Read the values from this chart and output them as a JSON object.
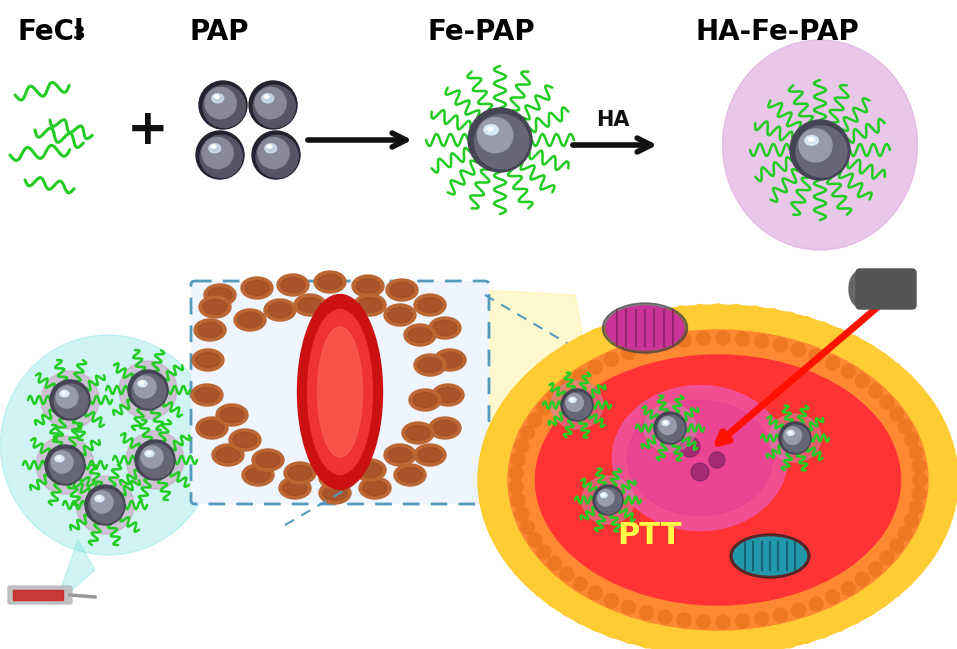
{
  "figsize": [
    9.57,
    6.49
  ],
  "dpi": 100,
  "labels": {
    "fecl3": "FeCl",
    "fecl3_sub": "3",
    "pap": "PAP",
    "fe_pap": "Fe-PAP",
    "ha_fe_pap": "HA-Fe-PAP",
    "ha": "HA",
    "ptt": "PTT"
  },
  "colors": {
    "bg": "#ffffff",
    "green": "#22cc22",
    "sphere_dark": "#333344",
    "sphere_mid": "#666677",
    "sphere_light": "#aaaacc",
    "sphere_highlight": "#eeeeff",
    "pap_sphere": "#888898",
    "pap_mid": "#aaaaaa",
    "ha_bubble": "#ddaadd",
    "ha_bubble2": "#cc99cc",
    "arrow": "#111111",
    "teal_bubble": "#88dddd",
    "nano_bg_pink": "#cc99bb",
    "outer_cell": "#ffcc33",
    "mid_cell": "#ff8833",
    "inner_cell": "#ff3333",
    "nucleus": "#ee55aa",
    "nucleus_dark": "#cc3388",
    "laser": "#ff1100",
    "laser_device": "#555555",
    "mito_pink": "#cc3388",
    "mito_teal": "#2299aa",
    "rbc_brown": "#bb6633",
    "vessel_red": "#dd1111",
    "box_dashed": "#5599bb",
    "yellow_link": "#ffee99",
    "ptt_color": "#ffff44"
  }
}
